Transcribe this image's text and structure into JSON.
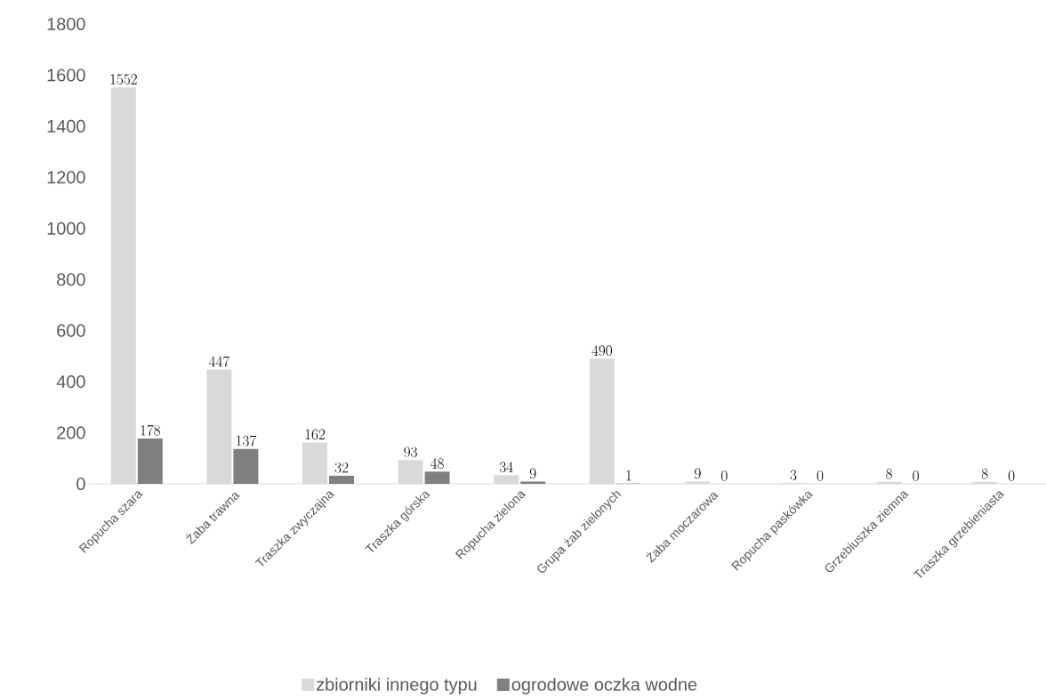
{
  "chart_data": {
    "type": "bar",
    "categories": [
      "Ropucha szara",
      "Żaba trawna",
      "Traszka zwyczajna",
      "Traszka górska",
      "Ropucha zielona",
      "Grupa żab zielonych",
      "Żaba moczarowa",
      "Ropucha paskówka",
      "Grzebiuszka ziemna",
      "Traszka grzebieniasta"
    ],
    "series": [
      {
        "name": "zbiorniki innego typu",
        "color": "#d9d9d9",
        "values": [
          1552,
          447,
          162,
          93,
          34,
          490,
          9,
          3,
          8,
          8
        ]
      },
      {
        "name": "ogrodowe oczka wodne",
        "color": "#808080",
        "values": [
          178,
          137,
          32,
          48,
          9,
          1,
          0,
          0,
          0,
          0
        ]
      }
    ],
    "ylim": [
      0,
      1800
    ],
    "yticks": [
      0,
      200,
      400,
      600,
      800,
      1000,
      1200,
      1400,
      1600,
      1800
    ],
    "data_labels": true,
    "legend": "bottom"
  }
}
